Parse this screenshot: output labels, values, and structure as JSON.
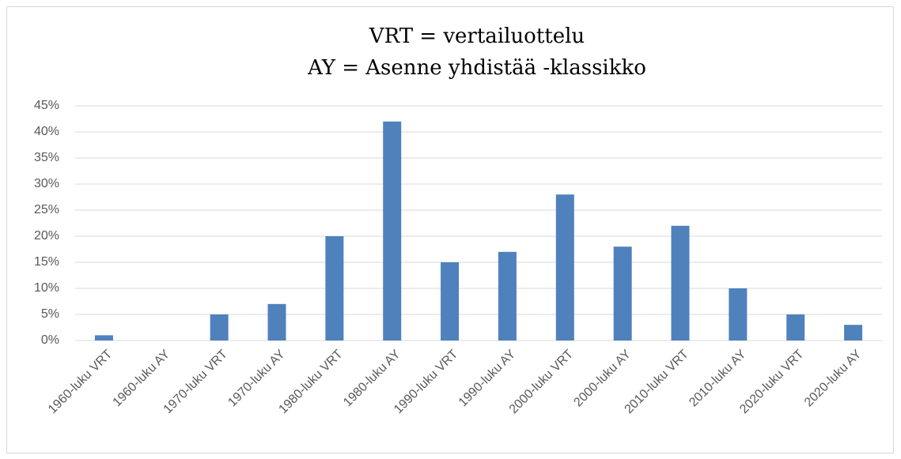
{
  "chart_data": {
    "type": "bar",
    "title": [
      "VRT = vertailuottelu",
      "AY = Asenne yhdistää -klassikko"
    ],
    "categories": [
      "1960-luku VRT",
      "1960-luku AY",
      "1970-luku VRT",
      "1970-luku AY",
      "1980-luku VRT",
      "1980-luku AY",
      "1990-luku VRT",
      "1990-luku AY",
      "2000-luku VRT",
      "2000-luku AY",
      "2010-luku VRT",
      "2010-luku AY",
      "2020-luku VRT",
      "2020-luku AY"
    ],
    "values": [
      1,
      0,
      5,
      7,
      20,
      42,
      15,
      17,
      28,
      18,
      22,
      10,
      5,
      3
    ],
    "color": "#4f81bd",
    "ylim": [
      0,
      45
    ],
    "yticks": [
      {
        "value": 0,
        "label": "0%"
      },
      {
        "value": 5,
        "label": "5%"
      },
      {
        "value": 10,
        "label": "10%"
      },
      {
        "value": 15,
        "label": "15%"
      },
      {
        "value": 20,
        "label": "20%"
      },
      {
        "value": 25,
        "label": "25%"
      },
      {
        "value": 30,
        "label": "30%"
      },
      {
        "value": 35,
        "label": "35%"
      },
      {
        "value": 40,
        "label": "40%"
      },
      {
        "value": 45,
        "label": "45%"
      }
    ],
    "grid": true
  }
}
